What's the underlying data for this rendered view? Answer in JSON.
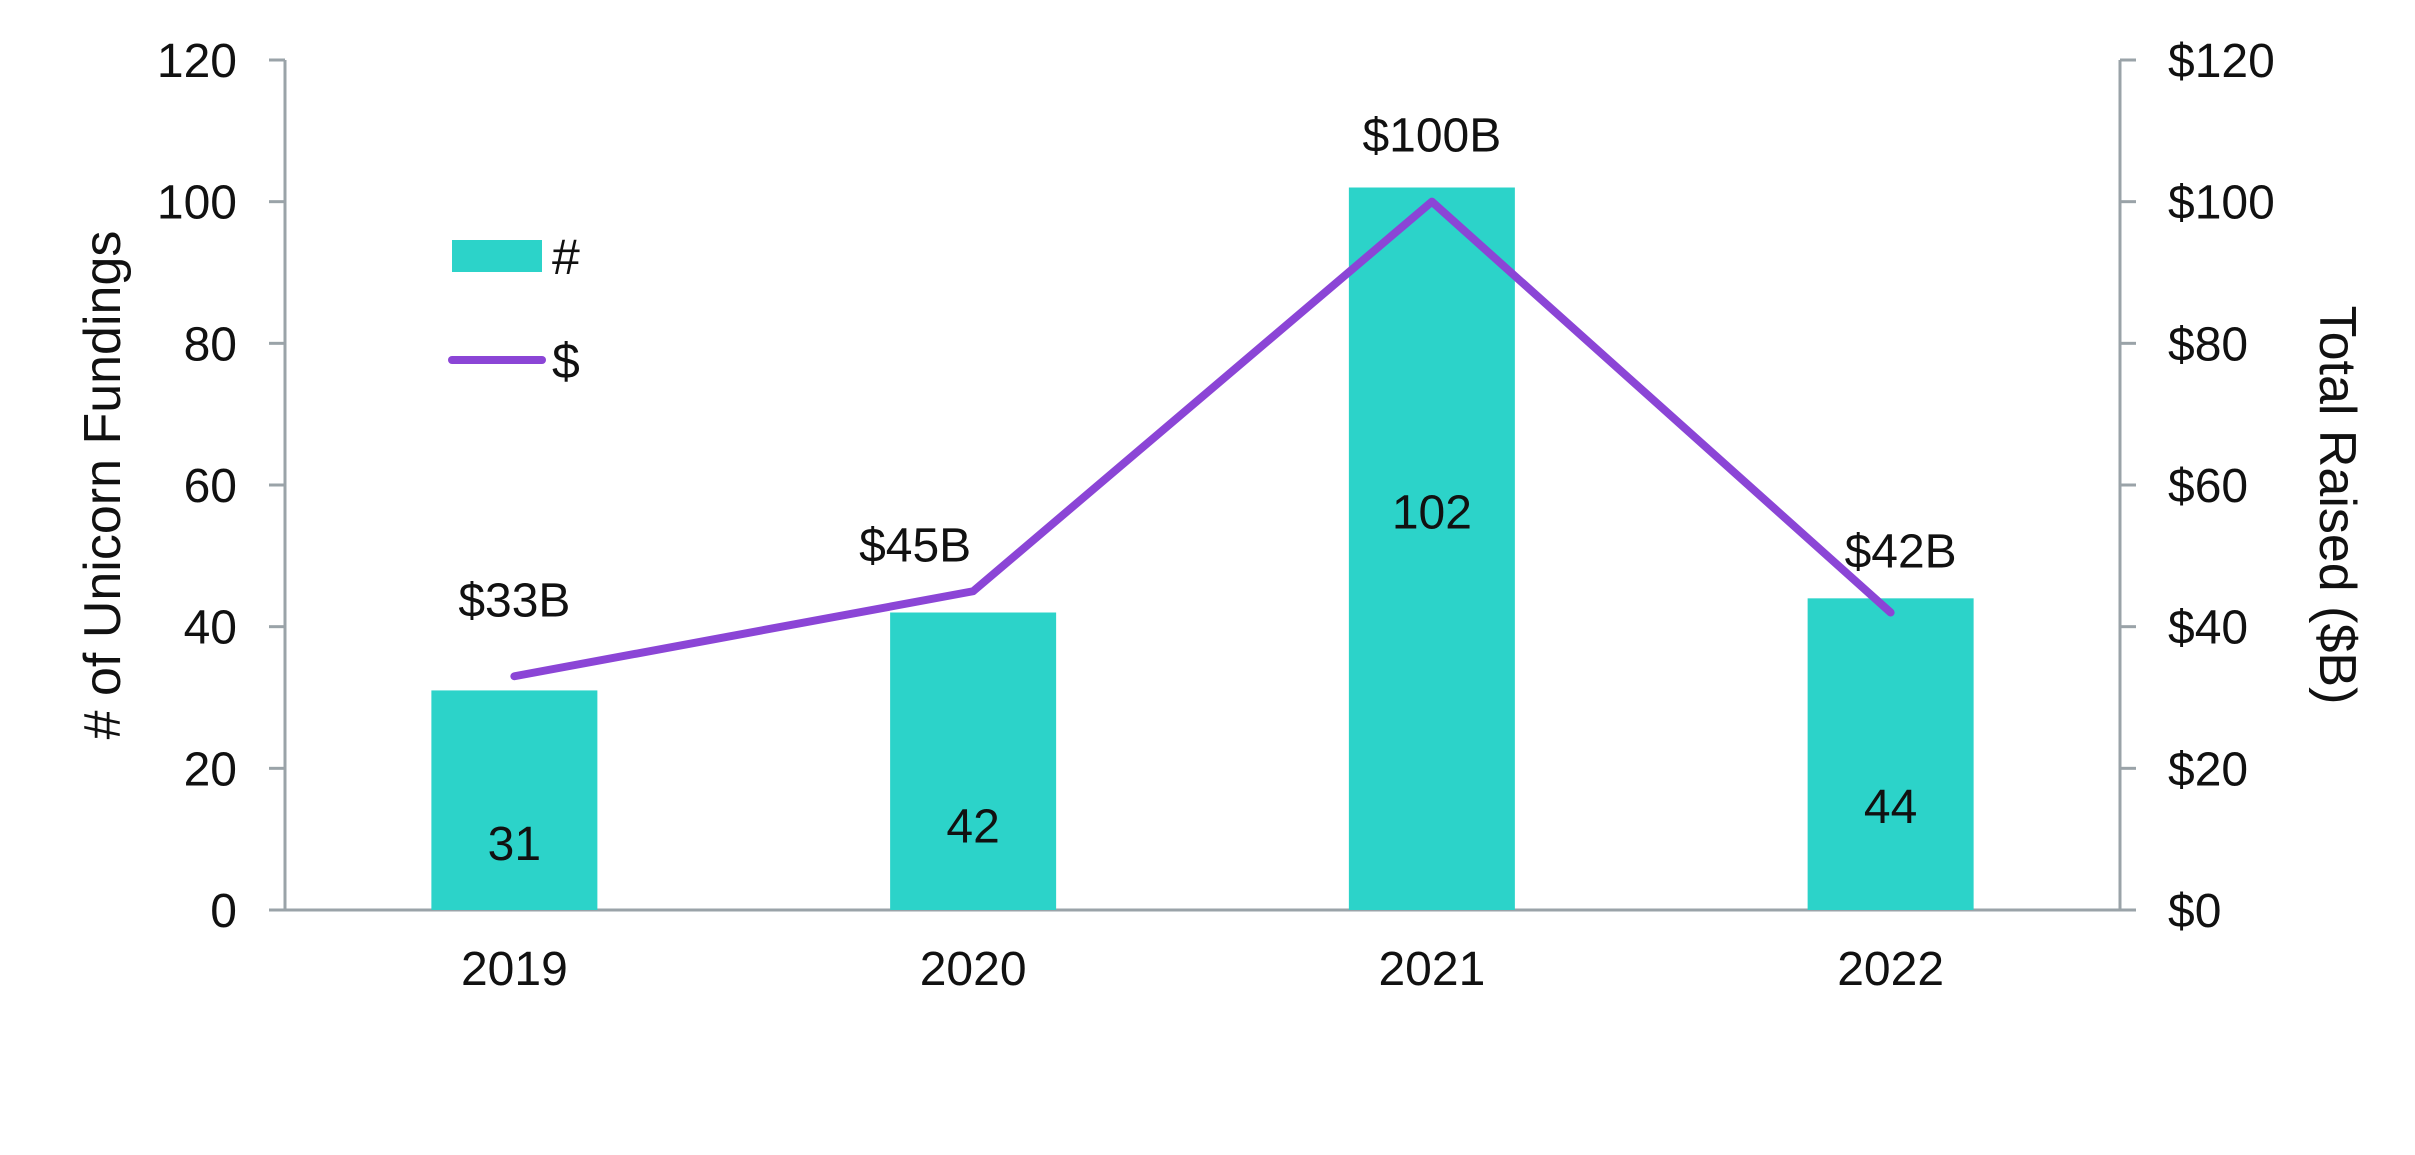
{
  "chart_data": {
    "type": "bar+line",
    "categories": [
      "2019",
      "2020",
      "2021",
      "2022"
    ],
    "series": [
      {
        "name": "#",
        "type": "bar",
        "axis": "left",
        "values": [
          31,
          42,
          102,
          44
        ],
        "labels": [
          "31",
          "42",
          "102",
          "44"
        ],
        "color": "#2CD3C9"
      },
      {
        "name": "$",
        "type": "line",
        "axis": "right",
        "values": [
          33,
          45,
          100,
          42
        ],
        "labels": [
          "$33B",
          "$45B",
          "$100B",
          "$42B"
        ],
        "color": "#8B45D6"
      }
    ],
    "ylabel_left": "# of Unicorn Fundings",
    "ylabel_right": "Total Raised ($B)",
    "ylim_left": [
      0,
      120
    ],
    "ylim_right": [
      0,
      120
    ],
    "yticks_left": [
      "0",
      "20",
      "40",
      "60",
      "80",
      "100",
      "120"
    ],
    "yticks_right": [
      "$0",
      "$20",
      "$40",
      "$60",
      "$80",
      "$100",
      "$120"
    ],
    "grid": false,
    "legend_position": "top-left",
    "axis_color": "#9AA3A8"
  }
}
